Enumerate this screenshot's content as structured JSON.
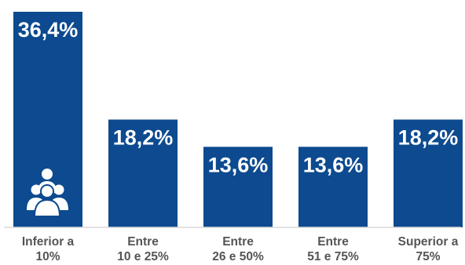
{
  "chart_data": {
    "type": "bar",
    "categories": [
      [
        "Inferior a",
        "10%"
      ],
      [
        "Entre",
        "10 e 25%"
      ],
      [
        "Entre",
        "26 e 50%"
      ],
      [
        "Entre",
        "51 e 75%"
      ],
      [
        "Superior a",
        "75%"
      ]
    ],
    "values": [
      36.4,
      18.2,
      13.6,
      13.6,
      18.2
    ],
    "value_labels": [
      "36,4%",
      "18,2%",
      "13,6%",
      "13,6%",
      "18,2%"
    ],
    "ylim": [
      0,
      36.4
    ],
    "grid": false,
    "legend": "none",
    "icon": "people-group-icon",
    "colors": {
      "bar": "#0d4a8f",
      "label": "#ffffff",
      "axis": "#d9d9d9",
      "category": "#555555"
    }
  }
}
